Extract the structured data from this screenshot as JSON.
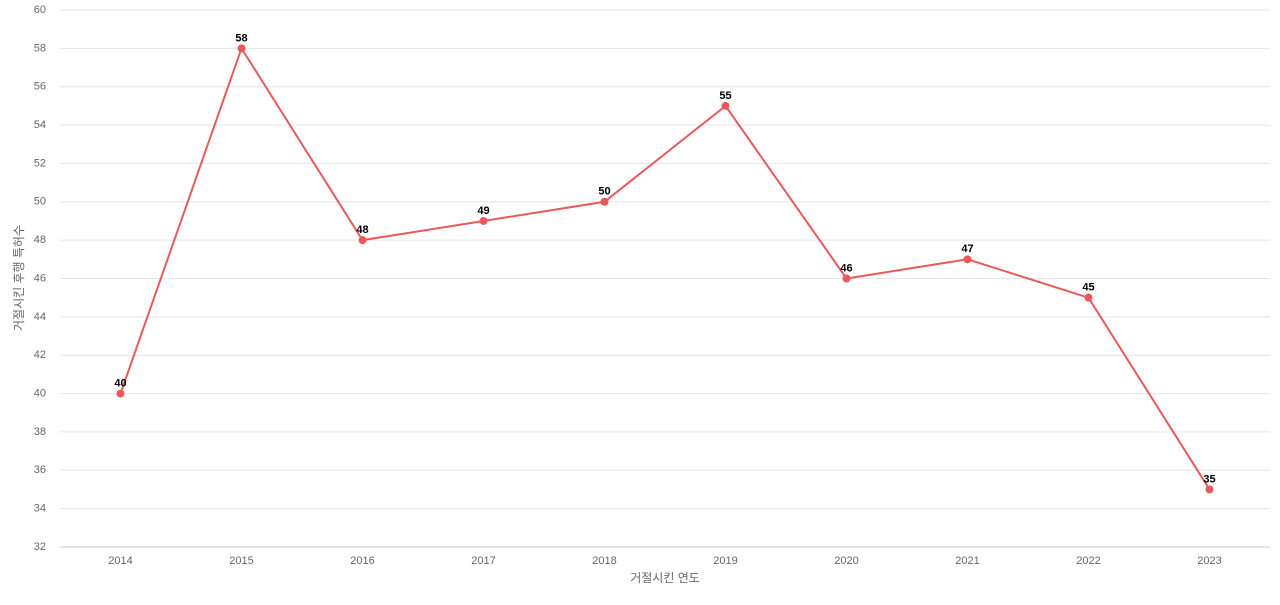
{
  "chart_data": {
    "type": "line",
    "x_label": "거절시킨 연도",
    "y_label": "거절시킨 후행 특허수",
    "categories": [
      "2014",
      "2015",
      "2016",
      "2017",
      "2018",
      "2019",
      "2020",
      "2021",
      "2022",
      "2023"
    ],
    "series": [
      {
        "color": "#e85a5a",
        "values": [
          40,
          58,
          48,
          49,
          50,
          55,
          46,
          47,
          45,
          35
        ]
      }
    ],
    "ylim": [
      32,
      60
    ],
    "yticks": [
      32,
      34,
      36,
      38,
      40,
      42,
      44,
      46,
      48,
      50,
      52,
      54,
      56,
      58,
      60
    ],
    "grid": true,
    "data_labels": true
  }
}
